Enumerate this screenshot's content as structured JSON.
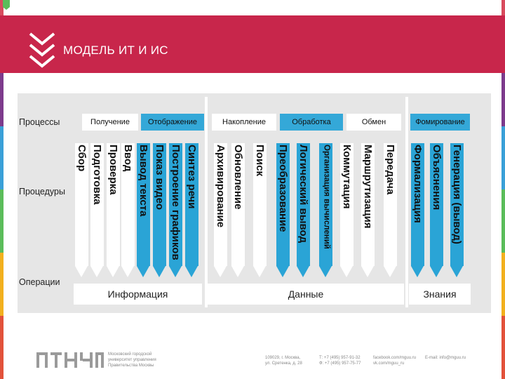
{
  "header": {
    "title": "МОДЕЛЬ ИТ И ИС"
  },
  "colors": {
    "header_bg": "#c8264b",
    "accent_blue": "#2aa4d6",
    "diagram_bg": "#e6e6e6",
    "stripes": [
      "#d84b5e",
      "#7d3b8c",
      "#3aa0d8",
      "#5bbd5a",
      "#f2b01e",
      "#e2523b"
    ]
  },
  "diagram": {
    "row_labels": {
      "processes": "Процессы",
      "procedures": "Процедуры",
      "operations": "Операции"
    },
    "processes": [
      {
        "label": "Получение",
        "style": "grey"
      },
      {
        "label": "Отображение",
        "style": "blue"
      },
      {
        "label": "Накопление",
        "style": "grey"
      },
      {
        "label": "Обработка",
        "style": "blue"
      },
      {
        "label": "Обмен",
        "style": "grey"
      },
      {
        "label": "Фомирование",
        "style": "blue"
      }
    ],
    "procedures": [
      {
        "label": "Сбор",
        "style": "grey"
      },
      {
        "label": "Подготовка",
        "style": "grey"
      },
      {
        "label": "Проверка",
        "style": "grey"
      },
      {
        "label": "Ввод",
        "style": "grey"
      },
      {
        "label": "Вывод текста",
        "style": "blue"
      },
      {
        "label": "Показ видео",
        "style": "blue"
      },
      {
        "label": "Построение графиков",
        "style": "blue"
      },
      {
        "label": "Синтез речи",
        "style": "blue"
      },
      {
        "label": "Архивирование",
        "style": "grey"
      },
      {
        "label": "Обновление",
        "style": "grey"
      },
      {
        "label": "Поиск",
        "style": "grey"
      },
      {
        "label": "Преобразование",
        "style": "blue"
      },
      {
        "label": "Логический вывод",
        "style": "blue"
      },
      {
        "label": "Организация вычислений",
        "style": "blue"
      },
      {
        "label": "Коммутация",
        "style": "grey"
      },
      {
        "label": "Маршрутизация",
        "style": "grey"
      },
      {
        "label": "Передача",
        "style": "grey"
      },
      {
        "label": "Формализация",
        "style": "blue"
      },
      {
        "label": "Объяснения",
        "style": "blue"
      },
      {
        "label": "Генерация (вывод)",
        "style": "blue"
      }
    ],
    "bottom": [
      "Информация",
      "Данные",
      "Знания"
    ]
  },
  "footer": {
    "org": "Московский городской\nуниверситет управления\nПравительства Москвы",
    "address": "109029, г. Москва,\nул. Сретенка, д. 28",
    "phones": "Т: +7 (495) 957-91-32\nФ: +7 (495) 957-75-77",
    "social": "facebook.com/mguu.ru\nvk.com/mguu_ru",
    "email": "E-mail: info@mguu.ru"
  }
}
